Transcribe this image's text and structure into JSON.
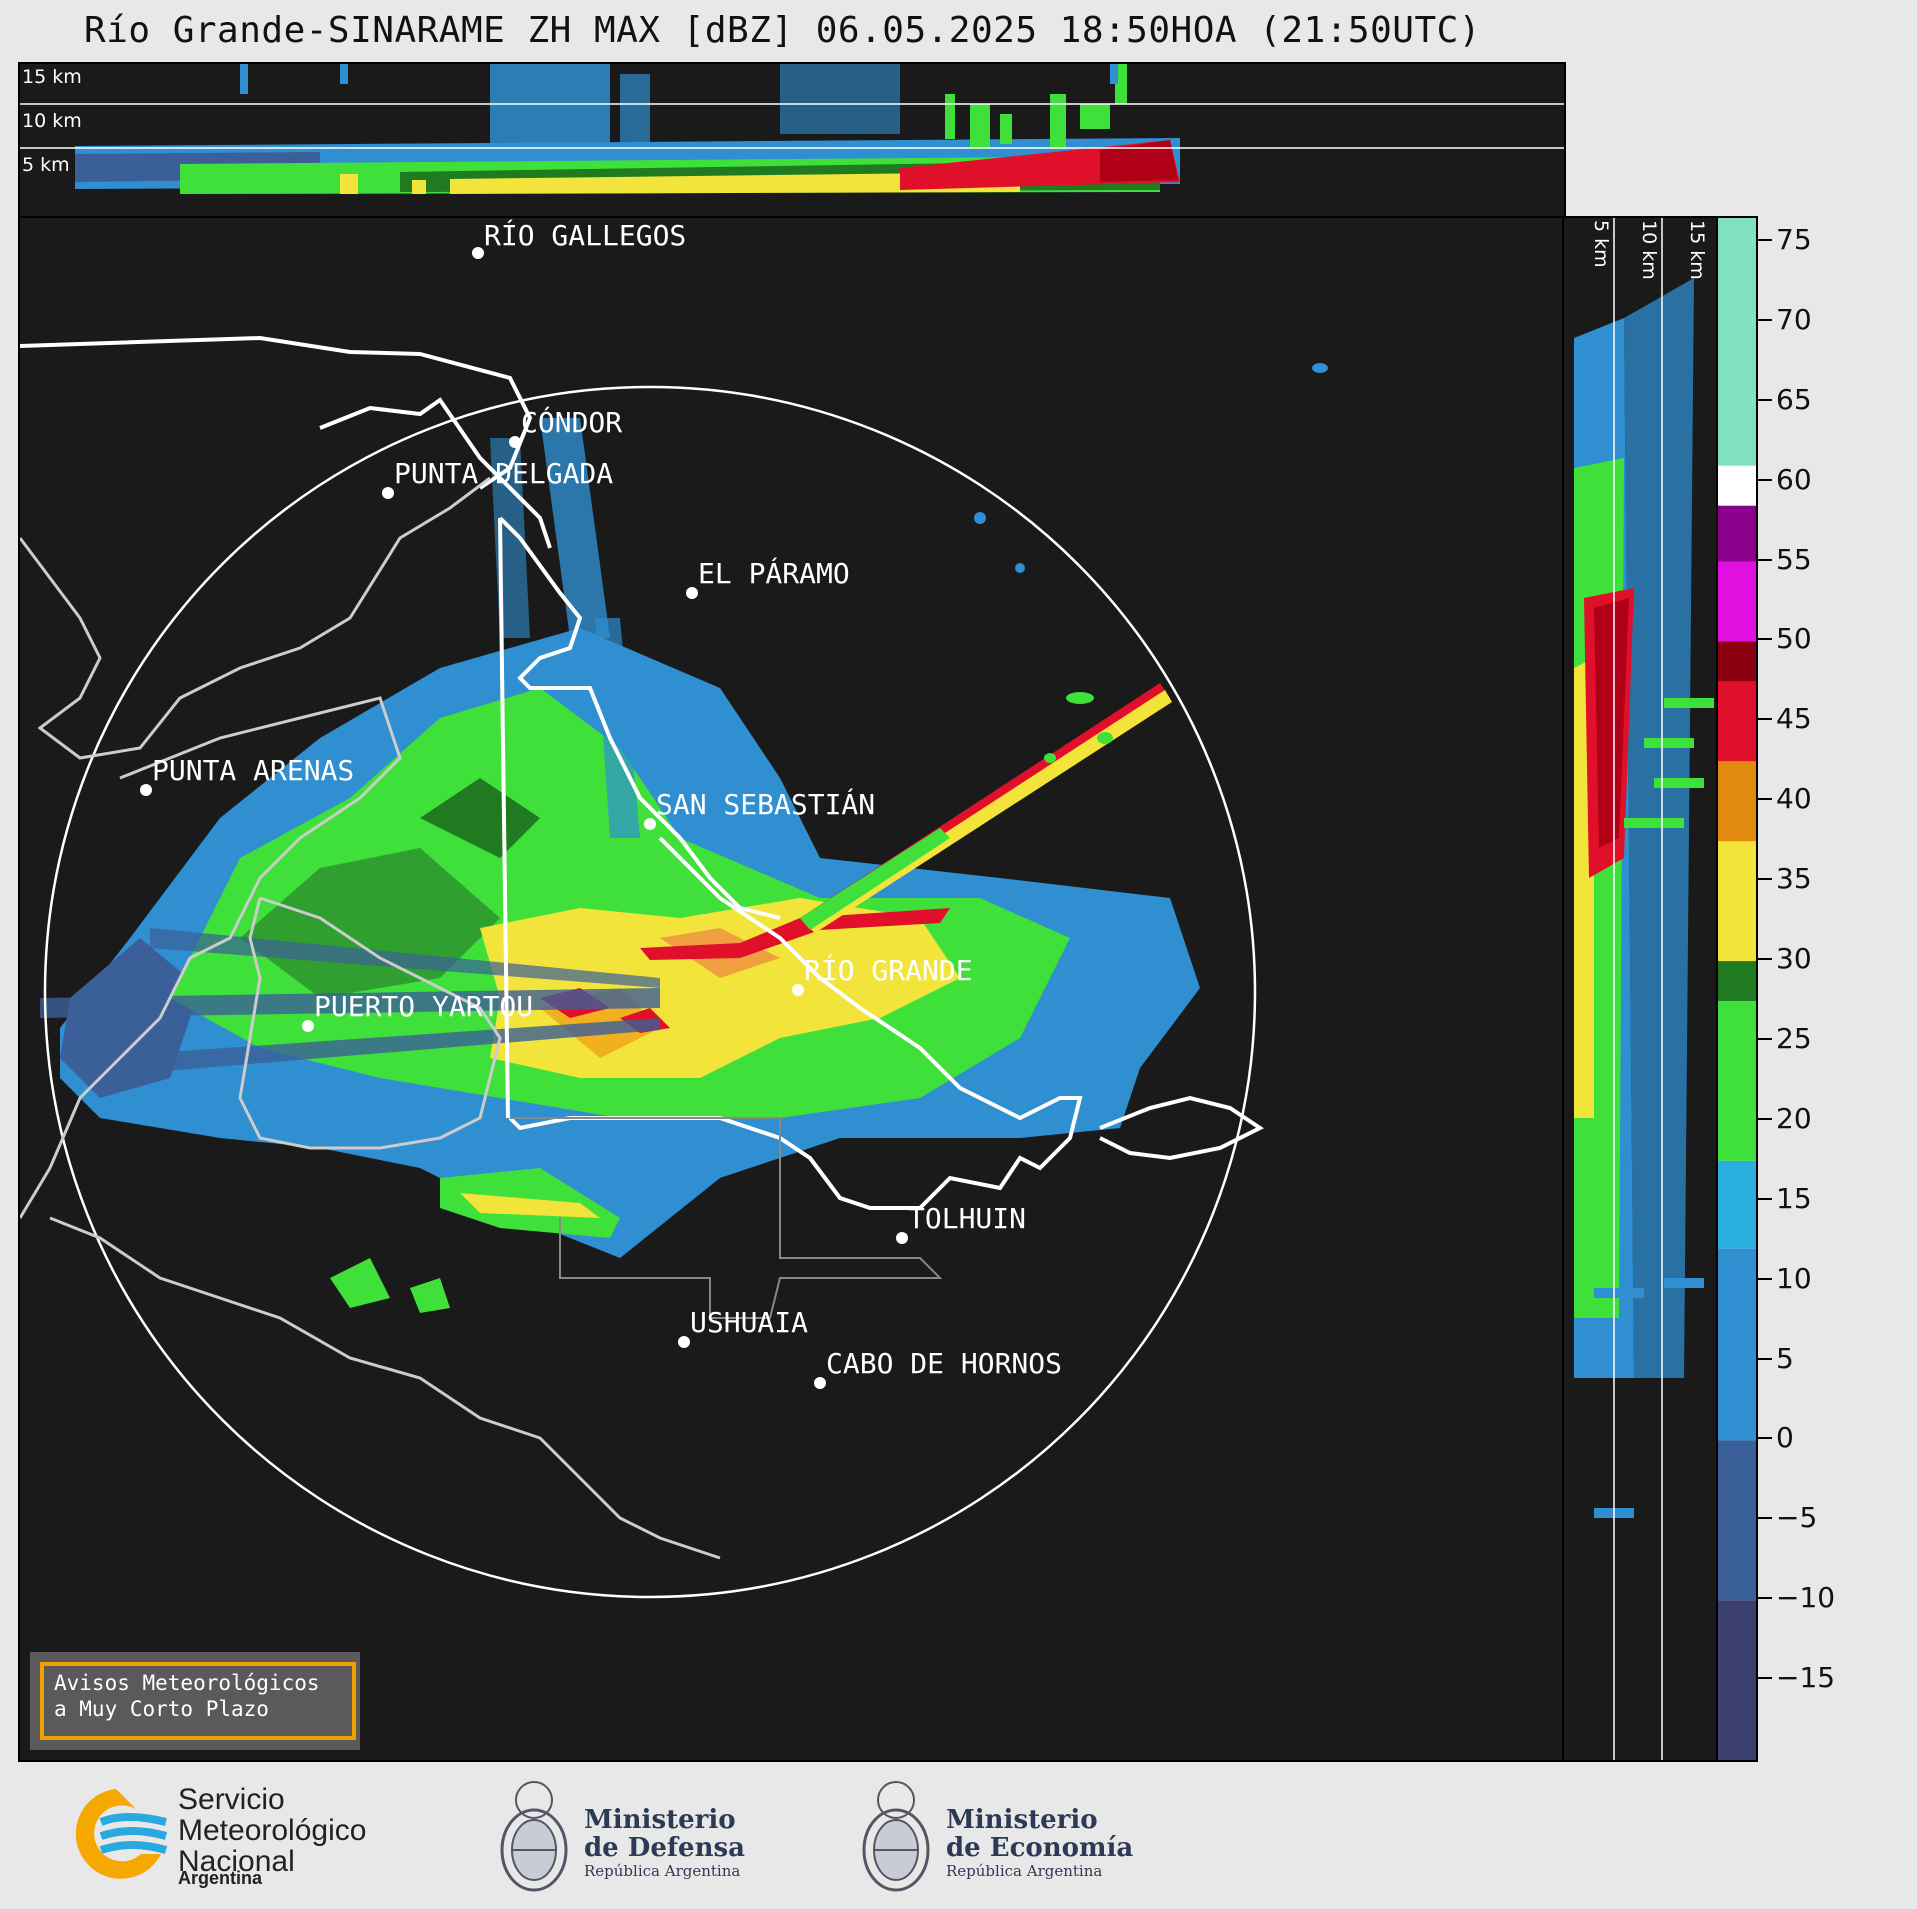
{
  "title": "Río Grande-SINARAME ZH MAX [dBZ] 06.05.2025 18:50HOA (21:50UTC)",
  "top_panel": {
    "altitude_labels": [
      "15 km",
      "10 km",
      "5 km"
    ]
  },
  "side_panel": {
    "altitude_labels": [
      "5 km",
      "10 km",
      "15 km"
    ]
  },
  "map": {
    "cities": [
      {
        "name": "RÍO GALLEGOS"
      },
      {
        "name": "CÓNDOR"
      },
      {
        "name": "PUNTA DELGADA"
      },
      {
        "name": "EL PÁRAMO"
      },
      {
        "name": "PUNTA ARENAS"
      },
      {
        "name": "SAN SEBASTIÁN"
      },
      {
        "name": "RÍO GRANDE"
      },
      {
        "name": "PUERTO YARTOU"
      },
      {
        "name": "TOLHUIN"
      },
      {
        "name": "USHUAIA"
      },
      {
        "name": "CABO DE HORNOS"
      }
    ]
  },
  "notice": {
    "line1": "Avisos Meteorológicos",
    "line2": "a Muy Corto Plazo"
  },
  "colorbar": {
    "unit": "dBZ",
    "ticks": [
      "75",
      "70",
      "65",
      "60",
      "55",
      "50",
      "45",
      "40",
      "35",
      "30",
      "25",
      "20",
      "15",
      "10",
      "5",
      "0",
      "−5",
      "−10",
      "−15"
    ],
    "range": [
      -20,
      76.5
    ],
    "colors": {
      "very_low": "#3a3f6e",
      "low": "#3b5f99",
      "blue": "#2f8fd0",
      "light_blue": "#2ab0e0",
      "green": "#3fe03a",
      "dark_green": "#1f7a20",
      "yellow": "#f2e43a",
      "orange": "#e08a10",
      "red": "#e0102a",
      "dark_red": "#8a0010",
      "magenta": "#e010e0",
      "purple": "#8a008a",
      "white": "#ffffff",
      "mint": "#80e0c0"
    }
  },
  "footer": {
    "smn": {
      "line1": "Servicio",
      "line2": "Meteorológico",
      "line3": "Nacional",
      "line4": "Argentina"
    },
    "defensa": {
      "line1": "Ministerio",
      "line2": "de Defensa",
      "line3": "República Argentina"
    },
    "economia": {
      "line1": "Ministerio",
      "line2": "de Economía",
      "line3": "República Argentina"
    }
  }
}
